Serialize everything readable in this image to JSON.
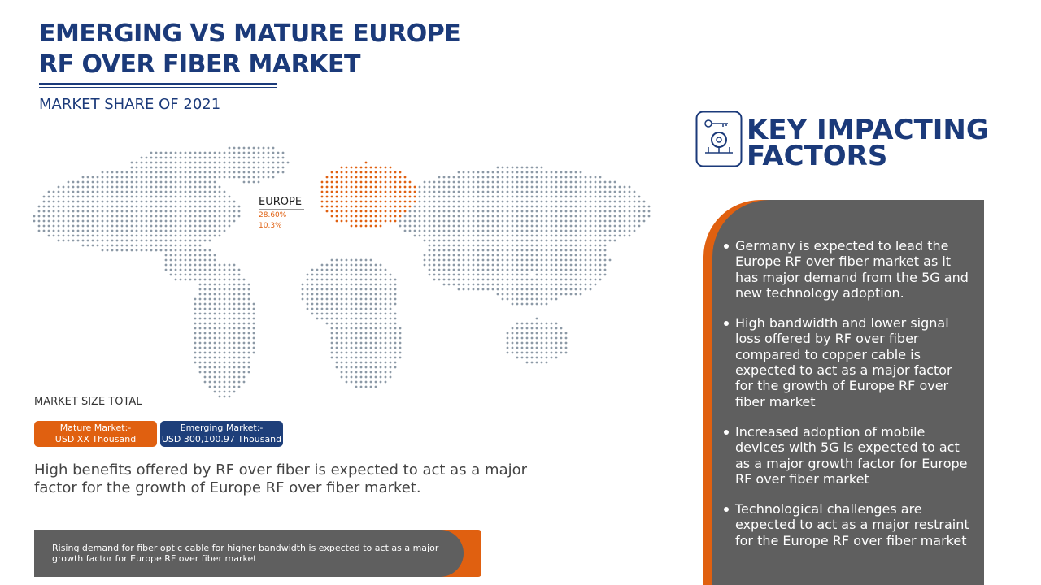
{
  "header": {
    "title_line1": "EMERGING VS MATURE EUROPE",
    "title_line2": "RF OVER FIBER MARKET",
    "subtitle": "MARKET SHARE OF 2021"
  },
  "map": {
    "region_label": "EUROPE",
    "share_1": "28.60%",
    "share_2": "10.3%"
  },
  "market_size": {
    "title": "MARKET SIZE TOTAL",
    "mature": [
      "Mature Market:-",
      "USD XX Thousand"
    ],
    "emerging": [
      "Emerging Market:-",
      "USD 300,100.97 Thousand"
    ]
  },
  "summary": "High benefits offered by RF over fiber is expected to act as a major factor for the growth of Europe RF over fiber market.",
  "banner": "Rising demand for fiber optic cable for higher bandwidth is expected to act as a major growth factor for Europe RF over fiber market",
  "key_factors": {
    "title_line1": "KEY IMPACTING",
    "title_line2": "FACTORS",
    "items": [
      "Germany is expected to lead the Europe RF over fiber market as it has major demand from the 5G and new technology adoption.",
      "High bandwidth and lower signal loss offered by RF over fiber compared to copper cable is expected to act as a major factor for the growth of Europe RF over fiber market",
      "Increased adoption of mobile devices with 5G is expected to act as a major growth factor for Europe RF over fiber market",
      "Technological challenges are expected to act as a major restraint for the Europe RF over fiber market"
    ]
  }
}
